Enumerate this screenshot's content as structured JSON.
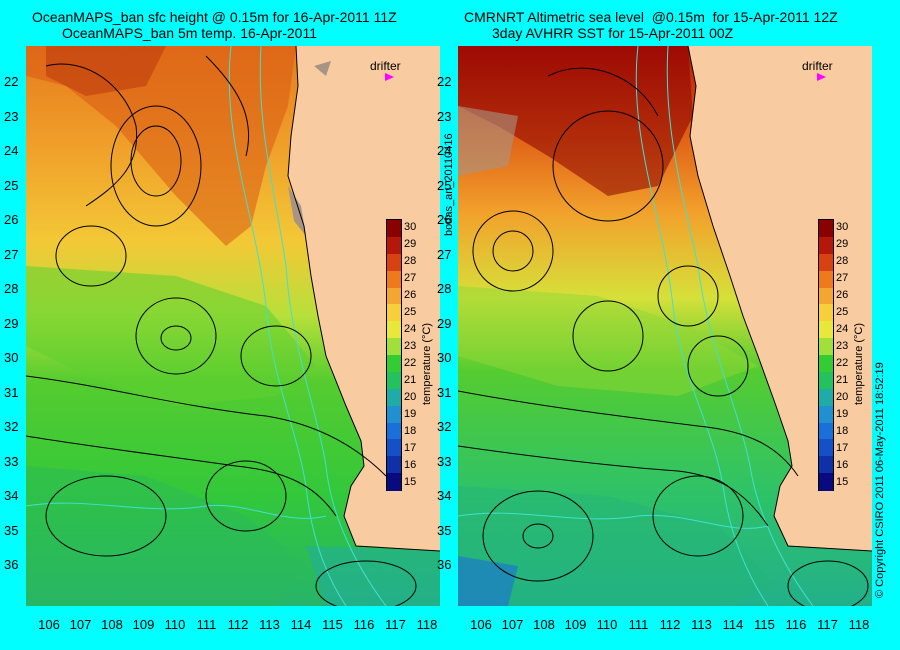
{
  "titles": {
    "left_line1": "OceanMAPS_ban sfc height @ 0.15m for 16-Apr-2011 11Z",
    "left_line2": "OceanMAPS_ban 5m temp. 16-Apr-2011",
    "right_line1": "CMRNRT Altimetric sea level  @0.15m  for 15-Apr-2011 12Z",
    "right_line2": "3day AVHRR SST for 15-Apr-2011 00Z"
  },
  "latitude_labels": [
    "22",
    "23",
    "24",
    "25",
    "26",
    "27",
    "28",
    "29",
    "30",
    "31",
    "32",
    "33",
    "34",
    "35",
    "36"
  ],
  "longitude_labels": [
    "106",
    "107",
    "108",
    "109",
    "110",
    "111",
    "112",
    "113",
    "114",
    "115",
    "116",
    "117",
    "118"
  ],
  "colorbar": {
    "title": "temperature (°C)",
    "ticks": [
      "30",
      "29",
      "28",
      "27",
      "26",
      "25",
      "24",
      "23",
      "22",
      "21",
      "20",
      "19",
      "18",
      "17",
      "16",
      "15"
    ],
    "colors": [
      "#8b0000",
      "#b5170a",
      "#d84112",
      "#ee7a1c",
      "#f5a630",
      "#f7cf3a",
      "#e8e83a",
      "#9fe03a",
      "#33cc33",
      "#22c25e",
      "#20aca6",
      "#2090d0",
      "#1a6fd8",
      "#1450c8",
      "#1030a8",
      "#0a0a80"
    ]
  },
  "drifter_label": "drifter",
  "side_labels": {
    "left": "bodas_an_20110416",
    "right": "© Copyright CSIRO 2011   06-May-2011 18:52:19"
  },
  "land_color": "#f9cba0",
  "contour_color": "#000000",
  "isobath_color": "#40e0d0"
}
